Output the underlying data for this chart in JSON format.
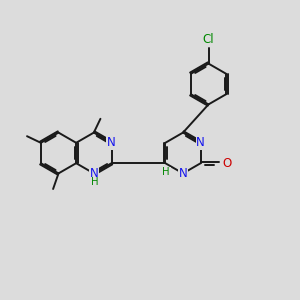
{
  "bg": "#dcdcdc",
  "bc": "#1a1a1a",
  "blw": 1.4,
  "doff": 0.048,
  "dtrim": 0.14,
  "Nc": "#1414ee",
  "Oc": "#cc0000",
  "Clc": "#008800",
  "Cc": "#1a1a1a",
  "Hc": "#008800",
  "fs": 8.5,
  "sfs": 7.2,
  "R": 0.68,
  "xlim": [
    0.5,
    10.5
  ],
  "ylim": [
    1.0,
    10.5
  ]
}
